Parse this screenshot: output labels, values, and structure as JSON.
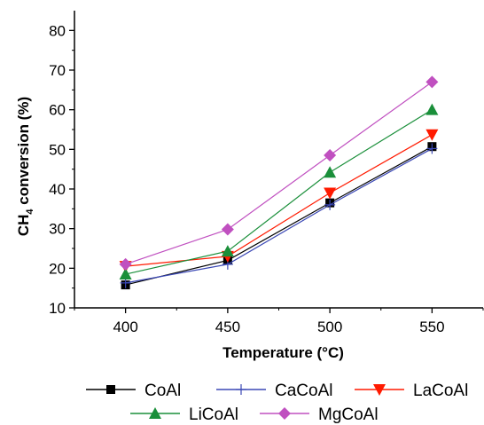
{
  "chart_data": {
    "type": "line",
    "title": "",
    "xlabel": "Temperature (°C)",
    "ylabel_main": "CH",
    "ylabel_sub": "4",
    "ylabel_rest": " conversion (%)",
    "x": [
      400,
      450,
      500,
      550
    ],
    "xlim": [
      375,
      575
    ],
    "ylim": [
      10,
      85
    ],
    "xticks": [
      400,
      450,
      500,
      550
    ],
    "yticks": [
      10,
      20,
      30,
      40,
      50,
      60,
      70,
      80
    ],
    "grid": false,
    "legend_position": "bottom",
    "series": [
      {
        "name": "CoAl",
        "values": [
          15.8,
          22.0,
          36.5,
          50.7
        ],
        "color": "#000000",
        "marker": "square"
      },
      {
        "name": "CaCoAl",
        "values": [
          16.3,
          21.0,
          36.0,
          50.2
        ],
        "color": "#3b48b5",
        "marker": "plus"
      },
      {
        "name": "LaCoAl",
        "values": [
          20.5,
          23.0,
          39.0,
          53.7
        ],
        "color": "#ff1a00",
        "marker": "triangle-down"
      },
      {
        "name": "LiCoAl",
        "values": [
          18.5,
          24.3,
          44.2,
          60.0
        ],
        "color": "#1a8f3a",
        "marker": "triangle-up"
      },
      {
        "name": "MgCoAl",
        "values": [
          21.0,
          29.8,
          48.5,
          67.0
        ],
        "color": "#c050c0",
        "marker": "diamond"
      }
    ]
  }
}
